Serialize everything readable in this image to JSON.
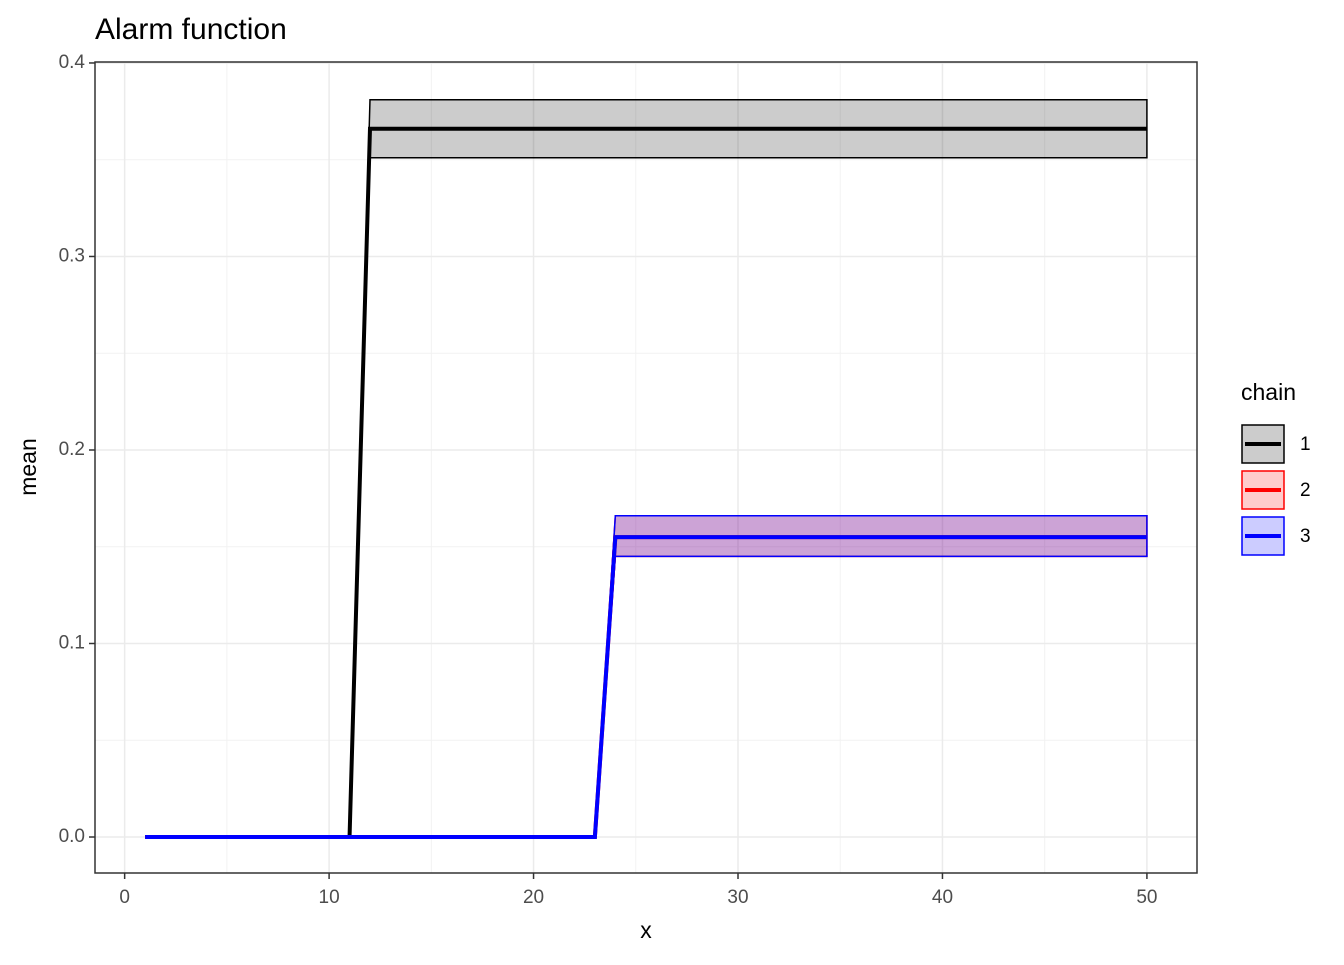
{
  "chart_data": {
    "type": "line",
    "title": "Alarm function",
    "x_label": "x",
    "y_label": "mean",
    "legend_title": "chain",
    "legend_position": "right",
    "grid": true,
    "xlim": [
      -1.45,
      52.45
    ],
    "ylim": [
      -0.0186,
      0.4005
    ],
    "xticks": [
      0,
      10,
      20,
      30,
      40,
      50
    ],
    "yticks": [
      {
        "value": 0,
        "label": "0.0"
      },
      0.1,
      0.2,
      0.3,
      0.4
    ],
    "series": [
      {
        "name": "1",
        "color": "#000000",
        "fill": "#cccccc",
        "x": [
          1,
          11,
          12,
          50
        ],
        "values": [
          0,
          0,
          0.366,
          0.366
        ],
        "lower": [
          0,
          0,
          0.351,
          0.351
        ],
        "upper": [
          0,
          0,
          0.381,
          0.381
        ]
      },
      {
        "name": "2",
        "color": "#ff0000",
        "fill": "#ffcccc",
        "x": [
          1,
          23,
          24,
          50
        ],
        "values": [
          0,
          0,
          0.155,
          0.155
        ],
        "lower": [
          0,
          0,
          0.145,
          0.145
        ],
        "upper": [
          0,
          0,
          0.166,
          0.166
        ]
      },
      {
        "name": "3",
        "color": "#0000ff",
        "fill": "#ccccff",
        "x": [
          1,
          23,
          24,
          50
        ],
        "values": [
          0,
          0,
          0.155,
          0.155
        ],
        "lower": [
          0,
          0,
          0.145,
          0.145
        ],
        "upper": [
          0,
          0,
          0.166,
          0.166
        ]
      }
    ]
  }
}
